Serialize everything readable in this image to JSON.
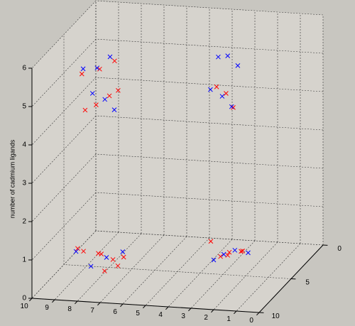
{
  "chart_data": {
    "type": "scatter3d",
    "zlabel": "number of cadmium ligands",
    "xlim": [
      0,
      10
    ],
    "xticks": [
      0,
      1,
      2,
      3,
      4,
      5,
      6,
      7,
      8,
      9,
      10
    ],
    "ylim": [
      0,
      10
    ],
    "yticks": [
      0,
      5,
      10
    ],
    "zlim": [
      0,
      6
    ],
    "zticks": [
      0,
      1,
      2,
      3,
      4,
      5,
      6
    ],
    "grid": true,
    "series": [
      {
        "color": "#ff0000",
        "x": [
          7.2,
          6.8,
          7.9,
          6.5,
          7.5,
          8.1,
          7.0,
          6.3,
          2.1,
          2.6,
          1.5,
          3.0,
          7.4,
          6.9,
          7.8,
          6.6,
          2.3,
          1.9,
          2.8,
          7.3,
          6.7,
          8.0,
          2.2,
          1.6
        ],
        "y": [
          9.1,
          8.7,
          9.4,
          9.0,
          8.5,
          9.6,
          9.3,
          8.8,
          7.2,
          6.8,
          7.5,
          6.9,
          9.2,
          8.9,
          9.5,
          8.6,
          7.0,
          7.3,
          6.7,
          9.0,
          8.8,
          9.3,
          7.1,
          6.9
        ],
        "z": [
          1.1,
          0.9,
          1.2,
          0.8,
          1.0,
          1.3,
          0.7,
          1.0,
          1.0,
          0.8,
          1.1,
          1.2,
          5.0,
          5.2,
          4.9,
          5.3,
          5.1,
          4.8,
          5.2,
          5.9,
          6.1,
          5.8,
          0.9,
          1.0
        ]
      },
      {
        "color": "#0000ff",
        "x": [
          7.0,
          7.6,
          6.4,
          8.2,
          2.4,
          1.8,
          2.9,
          1.3,
          7.1,
          6.6,
          7.7,
          2.5,
          2.0,
          3.1,
          7.3,
          6.9,
          8.0,
          2.2,
          1.7,
          2.7
        ],
        "y": [
          9.0,
          9.3,
          8.6,
          9.5,
          7.0,
          7.4,
          6.8,
          7.1,
          8.9,
          9.2,
          8.7,
          6.9,
          7.2,
          6.6,
          9.4,
          8.8,
          9.1,
          7.1,
          7.3,
          6.8
        ],
        "z": [
          1.0,
          0.8,
          1.1,
          1.2,
          0.9,
          1.1,
          0.7,
          1.0,
          5.1,
          4.9,
          5.2,
          5.0,
          4.8,
          5.1,
          6.0,
          6.2,
          5.9,
          6.1,
          5.9,
          6.0
        ]
      }
    ]
  }
}
